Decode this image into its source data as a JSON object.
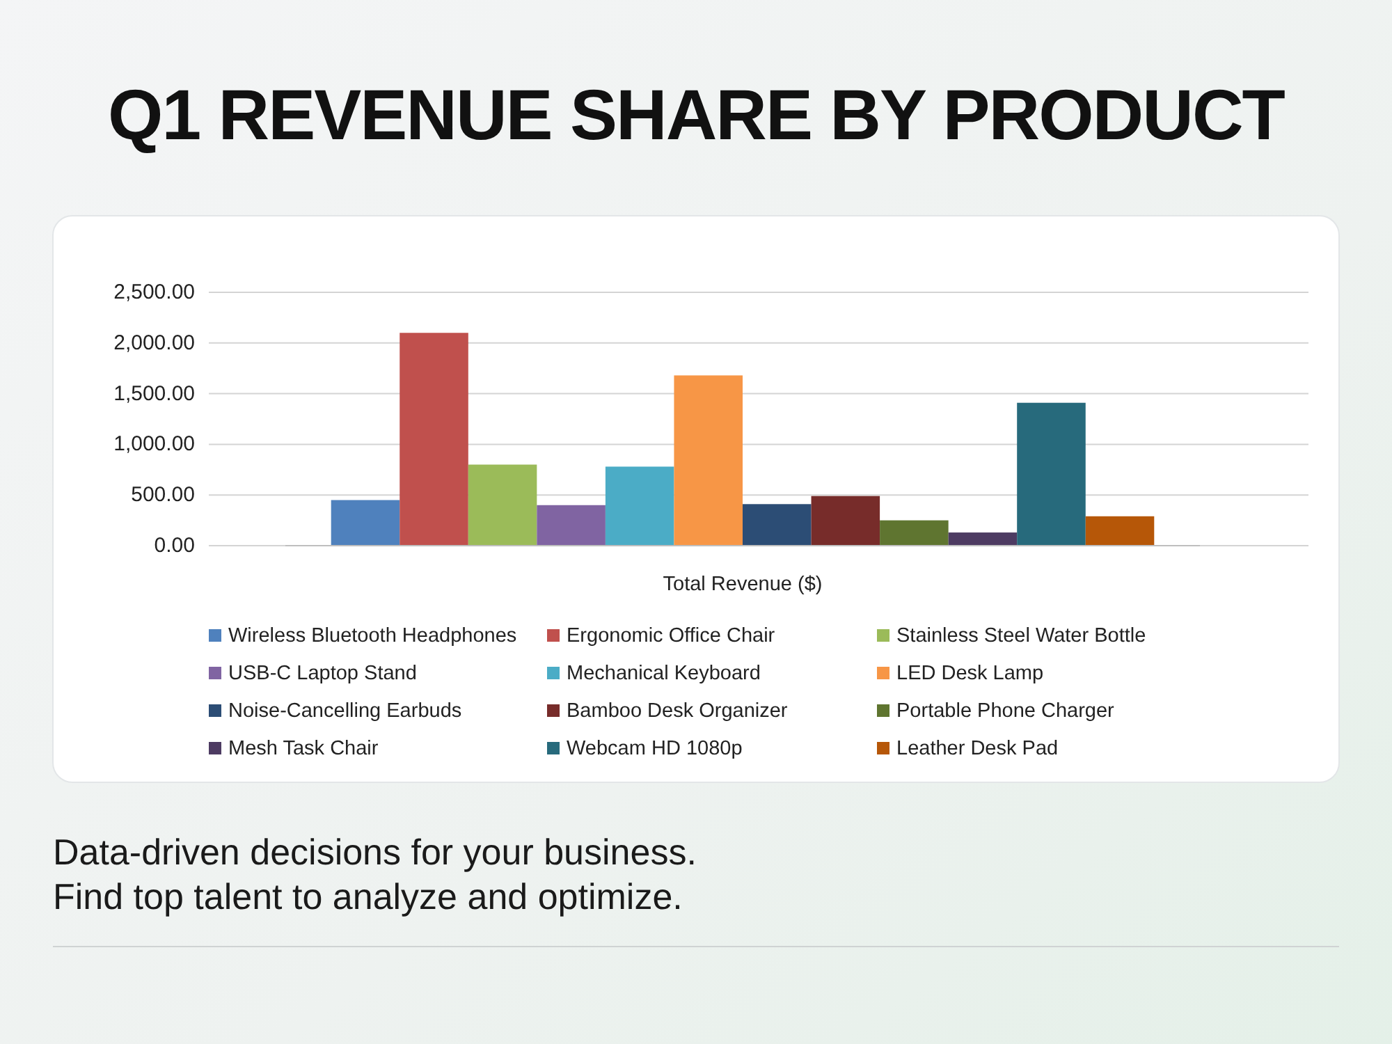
{
  "chart_data": {
    "type": "bar",
    "title": "Q1 REVENUE SHARE BY PRODUCT",
    "categories": [
      "Total Revenue ($)"
    ],
    "series": [
      {
        "name": "Wireless Bluetooth Headphones",
        "color": "#4f81bd",
        "values": [
          450
        ]
      },
      {
        "name": "Ergonomic Office Chair",
        "color": "#c0504d",
        "values": [
          2100
        ]
      },
      {
        "name": "Stainless Steel Water Bottle",
        "color": "#9bbb59",
        "values": [
          800
        ]
      },
      {
        "name": "USB-C Laptop Stand",
        "color": "#8064a2",
        "values": [
          400
        ]
      },
      {
        "name": "Mechanical Keyboard",
        "color": "#4bacc6",
        "values": [
          780
        ]
      },
      {
        "name": "LED Desk Lamp",
        "color": "#f79646",
        "values": [
          1680
        ]
      },
      {
        "name": "Noise-Cancelling Earbuds",
        "color": "#2c4d75",
        "values": [
          410
        ]
      },
      {
        "name": "Bamboo Desk Organizer",
        "color": "#772c2a",
        "values": [
          490
        ]
      },
      {
        "name": "Portable Phone Charger",
        "color": "#5f7530",
        "values": [
          250
        ]
      },
      {
        "name": "Mesh Task Chair",
        "color": "#4d3b62",
        "values": [
          130
        ]
      },
      {
        "name": "Webcam HD 1080p",
        "color": "#276a7c",
        "values": [
          1410
        ]
      },
      {
        "name": "Leather Desk Pad",
        "color": "#b65708",
        "values": [
          290
        ]
      }
    ],
    "ylim": [
      0,
      2500
    ],
    "yticks": [
      {
        "value": 0,
        "label": "0.00"
      },
      {
        "value": 500,
        "label": "500.00"
      },
      {
        "value": 1000,
        "label": "1,000.00"
      },
      {
        "value": 1500,
        "label": "1,500.00"
      },
      {
        "value": 2000,
        "label": "2,000.00"
      },
      {
        "value": 2500,
        "label": "2,500.00"
      }
    ],
    "grid": "y",
    "legend": "bottom",
    "annotations": [
      "Data-driven decisions for your business.",
      "Find top talent to analyze and optimize."
    ]
  }
}
